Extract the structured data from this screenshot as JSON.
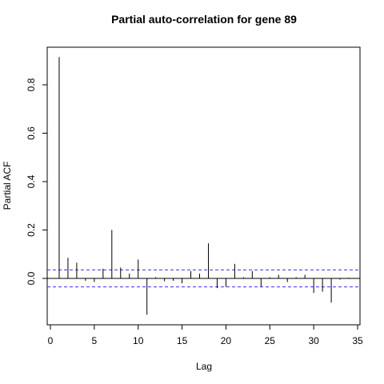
{
  "chart_data": {
    "type": "bar",
    "title": "Partial auto-correlation for gene 89",
    "xlabel": "Lag",
    "ylabel": "Partial ACF",
    "xlim": [
      0,
      35
    ],
    "ylim": [
      -0.19,
      0.95
    ],
    "xticks": [
      0,
      5,
      10,
      15,
      20,
      25,
      30,
      35
    ],
    "xtick_labels": [
      "0",
      "5",
      "10",
      "15",
      "20",
      "25",
      "30",
      "35"
    ],
    "yticks": [
      0.0,
      0.2,
      0.4,
      0.6,
      0.8
    ],
    "ytick_labels": [
      "0.0",
      "0.2",
      "0.4",
      "0.6",
      "0.8"
    ],
    "lags": [
      1,
      2,
      3,
      4,
      5,
      6,
      7,
      8,
      9,
      10,
      11,
      12,
      13,
      14,
      15,
      16,
      17,
      18,
      19,
      20,
      21,
      22,
      23,
      24,
      25,
      26,
      27,
      28,
      29,
      30,
      31,
      32,
      33,
      34
    ],
    "values": [
      0.915,
      0.085,
      0.065,
      -0.01,
      -0.015,
      0.04,
      0.2,
      0.045,
      0.02,
      0.078,
      -0.15,
      0.005,
      -0.012,
      -0.01,
      -0.02,
      0.03,
      0.02,
      0.145,
      -0.04,
      -0.035,
      0.06,
      0.005,
      0.03,
      -0.035,
      0.005,
      0.015,
      -0.015,
      0.005,
      0.015,
      -0.06,
      -0.055,
      -0.1,
      -0.005,
      0.003
    ],
    "confidence_bound": 0.035,
    "colors": {
      "bars": "#000000",
      "zero_line": "#000000",
      "ci_lines": "#3333ff"
    },
    "grid": false
  }
}
